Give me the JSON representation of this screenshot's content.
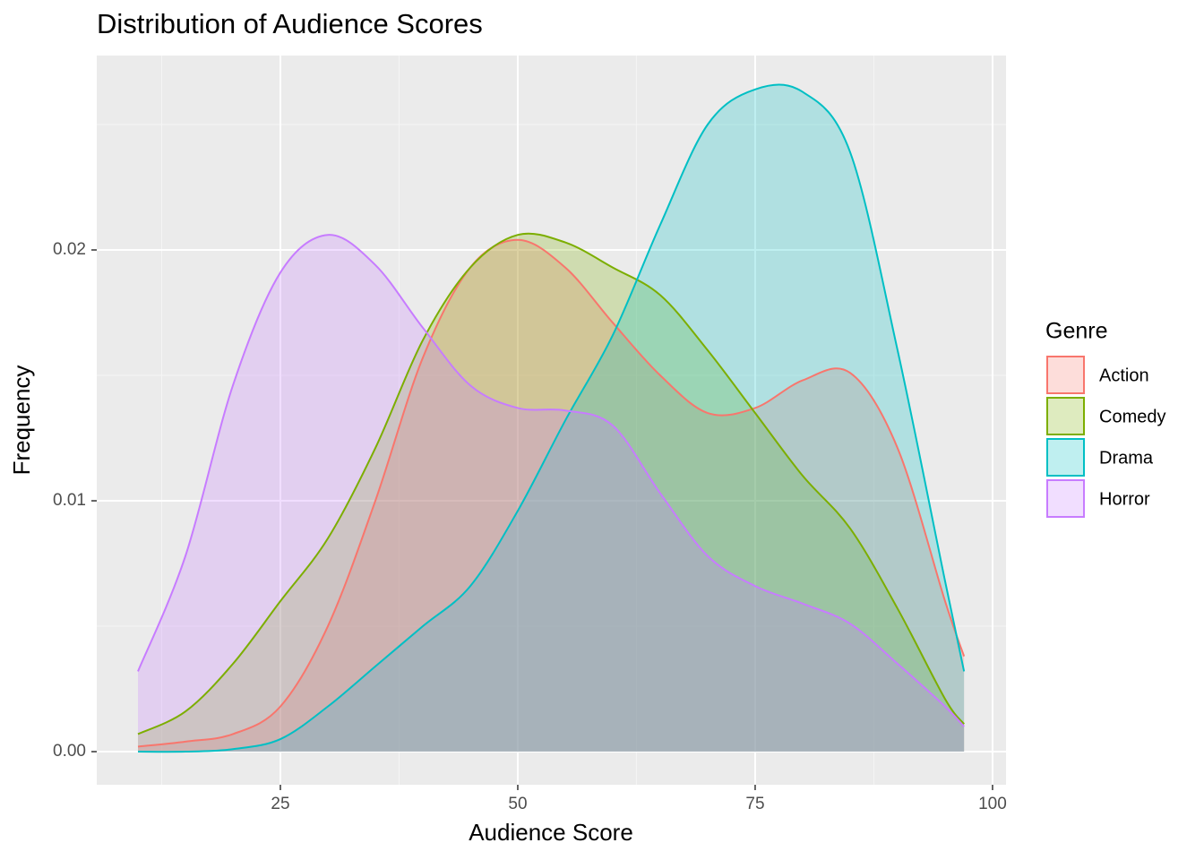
{
  "chart_data": {
    "type": "density",
    "title": "Distribution of Audience Scores",
    "x_label": "Audience Score",
    "y_label": "Frequency",
    "legend_title": "Genre",
    "legend_position": "right",
    "grid": true,
    "xlim": [
      5.66,
      101.42
    ],
    "ylim": [
      -0.00132,
      0.02775
    ],
    "xticks": [
      25,
      50,
      75,
      100
    ],
    "yticks": [
      {
        "value": 0,
        "label": "0.00"
      },
      {
        "value": 0.01,
        "label": "0.01"
      },
      {
        "value": 0.02,
        "label": "0.02"
      }
    ],
    "x": [
      10,
      15,
      20,
      25,
      30,
      35,
      40,
      45,
      50,
      55,
      60,
      65,
      70,
      75,
      80,
      85,
      90,
      95,
      97
    ],
    "series": [
      {
        "name": "Action",
        "color": "#F8766D",
        "values": [
          0.0002,
          0.0004,
          0.0007,
          0.0018,
          0.005,
          0.01,
          0.0157,
          0.0193,
          0.0204,
          0.0193,
          0.0171,
          0.015,
          0.0135,
          0.0137,
          0.0148,
          0.0151,
          0.0121,
          0.006,
          0.0038
        ]
      },
      {
        "name": "Comedy",
        "color": "#7CAE00",
        "values": [
          0.0007,
          0.0016,
          0.0035,
          0.006,
          0.0085,
          0.0121,
          0.0164,
          0.0193,
          0.0206,
          0.0203,
          0.0193,
          0.0182,
          0.016,
          0.0135,
          0.011,
          0.0089,
          0.0057,
          0.0021,
          0.0011
        ]
      },
      {
        "name": "Drama",
        "color": "#00BFC4",
        "values": [
          0,
          0,
          0.0001,
          0.0005,
          0.0018,
          0.0034,
          0.005,
          0.0066,
          0.0096,
          0.0132,
          0.0166,
          0.021,
          0.025,
          0.0264,
          0.0263,
          0.0239,
          0.016,
          0.0068,
          0.0032
        ]
      },
      {
        "name": "Horror",
        "color": "#C77CFF",
        "values": [
          0.0032,
          0.0078,
          0.0146,
          0.0191,
          0.0206,
          0.0194,
          0.0169,
          0.0146,
          0.0137,
          0.0136,
          0.013,
          0.0103,
          0.0078,
          0.0066,
          0.0059,
          0.0051,
          0.0035,
          0.0018,
          0.001
        ]
      }
    ]
  }
}
